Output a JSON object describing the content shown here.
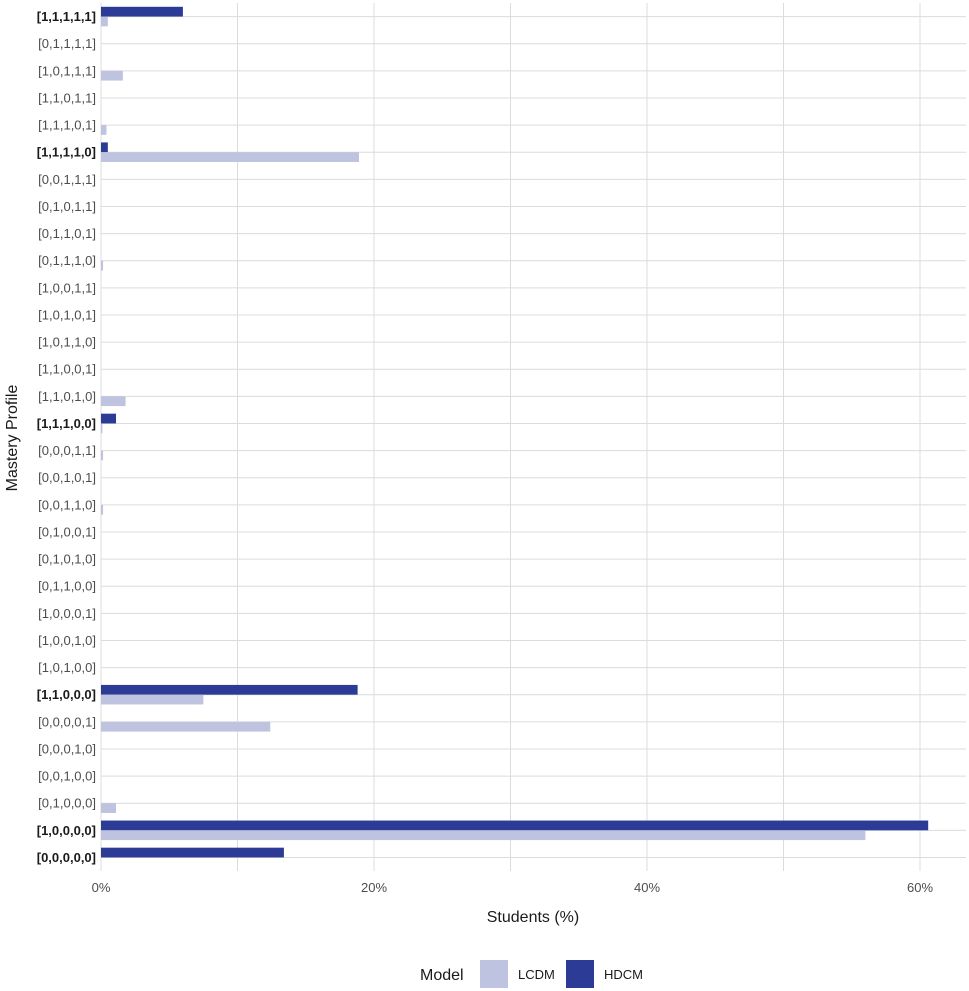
{
  "chart_data": {
    "type": "bar",
    "orientation": "horizontal",
    "xlabel": "Students (%)",
    "ylabel": "Mastery Profile",
    "xlim": [
      0,
      63
    ],
    "x_ticks": [
      0,
      20,
      40,
      60
    ],
    "x_tick_labels": [
      "0%",
      "20%",
      "40%",
      "60%"
    ],
    "grid": true,
    "legend": {
      "title": "Model",
      "position": "bottom"
    },
    "categories": [
      "[1,1,1,1,1]",
      "[0,1,1,1,1]",
      "[1,0,1,1,1]",
      "[1,1,0,1,1]",
      "[1,1,1,0,1]",
      "[1,1,1,1,0]",
      "[0,0,1,1,1]",
      "[0,1,0,1,1]",
      "[0,1,1,0,1]",
      "[0,1,1,1,0]",
      "[1,0,0,1,1]",
      "[1,0,1,0,1]",
      "[1,0,1,1,0]",
      "[1,1,0,0,1]",
      "[1,1,0,1,0]",
      "[1,1,1,0,0]",
      "[0,0,0,1,1]",
      "[0,0,1,0,1]",
      "[0,0,1,1,0]",
      "[0,1,0,0,1]",
      "[0,1,0,1,0]",
      "[0,1,1,0,0]",
      "[1,0,0,0,1]",
      "[1,0,0,1,0]",
      "[1,0,1,0,0]",
      "[1,1,0,0,0]",
      "[0,0,0,0,1]",
      "[0,0,0,1,0]",
      "[0,0,1,0,0]",
      "[0,1,0,0,0]",
      "[1,0,0,0,0]",
      "[0,0,0,0,0]"
    ],
    "bold_categories": [
      "[1,1,1,1,1]",
      "[1,1,1,1,0]",
      "[1,1,1,0,0]",
      "[1,1,0,0,0]",
      "[1,0,0,0,0]",
      "[0,0,0,0,0]"
    ],
    "series": [
      {
        "name": "LCDM",
        "color": "#bec3e0",
        "values": [
          0.5,
          0,
          1.6,
          0,
          0.4,
          18.9,
          0,
          0,
          0,
          0.15,
          0,
          0,
          0,
          0,
          1.8,
          0.1,
          0.15,
          0,
          0.15,
          0,
          0,
          0,
          0,
          0,
          0,
          7.5,
          12.4,
          0,
          0,
          1.1,
          56,
          0
        ]
      },
      {
        "name": "HDCM",
        "color": "#2b3b96",
        "values": [
          6,
          0,
          0,
          0,
          0,
          0.5,
          0,
          0,
          0,
          0,
          0,
          0,
          0,
          0,
          0,
          1.1,
          0,
          0,
          0,
          0,
          0,
          0,
          0,
          0,
          0,
          18.8,
          0,
          0,
          0,
          0,
          60.6,
          13.4
        ]
      }
    ]
  }
}
